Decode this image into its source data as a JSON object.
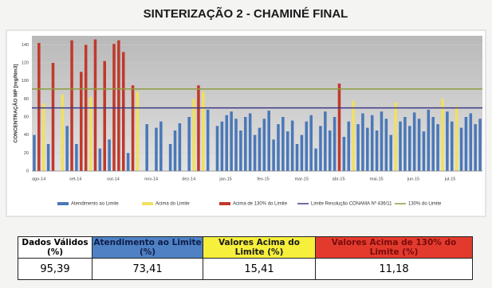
{
  "chart_data": {
    "type": "bar",
    "title": "SINTERIZAÇÃO 2 - CHAMINÉ FINAL",
    "y_label": "CONCENTRAÇÃO MP [mg/Nm3]",
    "categories": [
      "ago-14",
      null,
      null,
      null,
      null,
      null,
      null,
      null,
      "set-14",
      null,
      null,
      null,
      null,
      null,
      null,
      null,
      "out-14",
      null,
      null,
      null,
      null,
      null,
      null,
      null,
      "nov-14",
      null,
      null,
      null,
      null,
      null,
      null,
      null,
      "dez-14",
      null,
      null,
      null,
      null,
      null,
      null,
      null,
      "jan-15",
      null,
      null,
      null,
      null,
      null,
      null,
      null,
      "fev-15",
      null,
      null,
      null,
      null,
      null,
      null,
      null,
      "mar-15",
      null,
      null,
      null,
      null,
      null,
      null,
      null,
      "abr-15",
      null,
      null,
      null,
      null,
      null,
      null,
      null,
      "mai-15",
      null,
      null,
      null,
      null,
      null,
      null,
      null,
      "jun-15",
      null,
      null,
      null,
      null,
      null,
      null,
      null,
      "jul-15",
      null,
      null,
      null,
      null,
      null,
      null,
      null
    ],
    "series": [
      {
        "name": "Atendimento ao Limite",
        "color": "#4a78b8",
        "values": [
          40,
          null,
          null,
          30,
          null,
          null,
          null,
          50,
          null,
          30,
          null,
          null,
          null,
          null,
          25,
          null,
          35,
          null,
          null,
          null,
          20,
          null,
          null,
          null,
          52,
          null,
          48,
          55,
          null,
          30,
          45,
          53,
          null,
          60,
          null,
          null,
          null,
          68,
          null,
          50,
          55,
          62,
          66,
          58,
          45,
          60,
          64,
          40,
          48,
          58,
          67,
          35,
          52,
          60,
          44,
          56,
          30,
          40,
          55,
          62,
          25,
          50,
          66,
          45,
          60,
          null,
          38,
          55,
          null,
          52,
          64,
          48,
          62,
          45,
          66,
          58,
          40,
          null,
          55,
          60,
          50,
          65,
          58,
          44,
          68,
          60,
          52,
          null,
          66,
          55,
          null,
          48,
          60,
          64,
          52,
          58
        ]
      },
      {
        "name": "Acima do Limite",
        "color": "#f0e060",
        "values": [
          null,
          null,
          75,
          null,
          null,
          null,
          85,
          null,
          null,
          null,
          null,
          null,
          82,
          null,
          null,
          null,
          null,
          null,
          null,
          null,
          null,
          null,
          88,
          null,
          null,
          null,
          null,
          null,
          null,
          null,
          null,
          null,
          null,
          null,
          80,
          null,
          88,
          null,
          null,
          null,
          null,
          null,
          null,
          null,
          null,
          null,
          null,
          null,
          null,
          null,
          null,
          null,
          null,
          null,
          null,
          null,
          null,
          null,
          null,
          null,
          null,
          null,
          null,
          null,
          null,
          null,
          null,
          null,
          78,
          null,
          null,
          null,
          null,
          null,
          null,
          null,
          null,
          76,
          null,
          null,
          null,
          null,
          null,
          null,
          null,
          null,
          null,
          80,
          null,
          null,
          72,
          null,
          null,
          null,
          null,
          null
        ]
      },
      {
        "name": "Acima de 130% do Limite",
        "color": "#c0392b",
        "values": [
          null,
          142,
          null,
          null,
          120,
          null,
          null,
          null,
          145,
          null,
          110,
          140,
          null,
          146,
          null,
          122,
          null,
          141,
          145,
          132,
          null,
          95,
          null,
          null,
          null,
          null,
          null,
          null,
          null,
          null,
          null,
          null,
          null,
          null,
          null,
          95,
          null,
          null,
          null,
          null,
          null,
          null,
          null,
          null,
          null,
          null,
          null,
          null,
          null,
          null,
          null,
          null,
          null,
          null,
          null,
          null,
          null,
          null,
          null,
          null,
          null,
          null,
          null,
          null,
          null,
          97,
          null,
          null,
          null,
          null,
          null,
          null,
          null,
          null,
          null,
          null,
          null,
          null,
          null,
          null,
          null,
          null,
          null,
          null,
          null,
          null,
          null,
          null,
          null,
          null,
          null,
          null,
          null,
          null,
          null,
          null
        ]
      }
    ],
    "limits": [
      {
        "name": "Limite Resolução CONAMA Nº 436/11",
        "value": 70,
        "color": "#3c3a88"
      },
      {
        "name": "130% do Limite",
        "value": 91,
        "color": "#8e9a3c"
      }
    ],
    "ylim": [
      0,
      150
    ],
    "yticks": [
      0,
      20,
      40,
      60,
      80,
      100,
      120,
      140
    ],
    "grid": true
  },
  "table": {
    "header": [
      "Dados Válidos (%)",
      "Atendimento ao Limite (%)",
      "Valores Acima do Limite (%)",
      "Valores Acima de 130% do Limite (%)"
    ],
    "header_colors": [
      "#ffffff",
      "#4f81c4",
      "#f6ef3c",
      "#e23b2e"
    ],
    "header_text_colors": [
      "#000000",
      "#0e1e4a",
      "#1a1a1a",
      "#7a0a0a"
    ],
    "row": [
      "95,39",
      "73,41",
      "15,41",
      "11,18"
    ]
  }
}
